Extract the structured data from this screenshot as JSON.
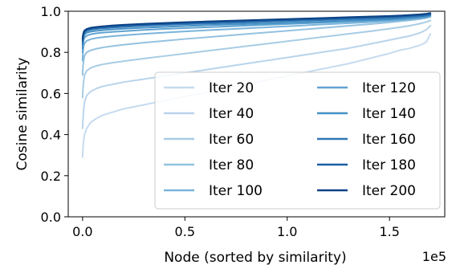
{
  "chart_data": {
    "type": "line",
    "title": "",
    "xlabel": "Node (sorted by similarity)",
    "ylabel": "Cosine similarity",
    "x_scale_label": "1e5",
    "xlim": [
      -0.07,
      1.77
    ],
    "ylim": [
      0.0,
      1.0
    ],
    "x_ticks": [
      0.0,
      0.5,
      1.0,
      1.5
    ],
    "x_tick_labels": [
      "0.0",
      "0.5",
      "1.0",
      "1.5"
    ],
    "y_ticks": [
      0.0,
      0.2,
      0.4,
      0.6,
      0.8,
      1.0
    ],
    "y_tick_labels": [
      "0.0",
      "0.2",
      "0.4",
      "0.6",
      "0.8",
      "1.0"
    ],
    "grid": false,
    "legend_position": "lower-right",
    "legend_columns": 2,
    "colormap": "Blues",
    "x": [
      0.0,
      0.002,
      0.005,
      0.01,
      0.02,
      0.04,
      0.07,
      0.1,
      0.15,
      0.2,
      0.3,
      0.4,
      0.5,
      0.6,
      0.7,
      0.8,
      0.9,
      1.0,
      1.1,
      1.2,
      1.3,
      1.4,
      1.5,
      1.55,
      1.6,
      1.65,
      1.68,
      1.7
    ],
    "series": [
      {
        "name": "Iter 20",
        "color": "#c6dbef",
        "values": [
          0.29,
          0.33,
          0.37,
          0.4,
          0.43,
          0.46,
          0.48,
          0.495,
          0.51,
          0.525,
          0.545,
          0.565,
          0.585,
          0.605,
          0.625,
          0.645,
          0.665,
          0.685,
          0.705,
          0.725,
          0.745,
          0.77,
          0.795,
          0.81,
          0.82,
          0.835,
          0.85,
          0.89
        ]
      },
      {
        "name": "Iter 40",
        "color": "#b9d4eb",
        "values": [
          0.43,
          0.47,
          0.52,
          0.56,
          0.59,
          0.61,
          0.625,
          0.635,
          0.645,
          0.655,
          0.67,
          0.685,
          0.7,
          0.715,
          0.73,
          0.745,
          0.76,
          0.775,
          0.79,
          0.805,
          0.82,
          0.84,
          0.86,
          0.87,
          0.88,
          0.895,
          0.91,
          0.93
        ]
      },
      {
        "name": "Iter 60",
        "color": "#a8cce4",
        "values": [
          0.58,
          0.62,
          0.66,
          0.69,
          0.71,
          0.725,
          0.735,
          0.742,
          0.75,
          0.757,
          0.77,
          0.782,
          0.794,
          0.806,
          0.818,
          0.83,
          0.842,
          0.854,
          0.866,
          0.878,
          0.89,
          0.902,
          0.915,
          0.922,
          0.93,
          0.94,
          0.948,
          0.955
        ]
      },
      {
        "name": "Iter 80",
        "color": "#94c2e0",
        "values": [
          0.69,
          0.73,
          0.76,
          0.785,
          0.8,
          0.81,
          0.818,
          0.824,
          0.831,
          0.837,
          0.847,
          0.856,
          0.865,
          0.873,
          0.881,
          0.889,
          0.897,
          0.905,
          0.913,
          0.921,
          0.929,
          0.937,
          0.946,
          0.951,
          0.956,
          0.962,
          0.967,
          0.972
        ]
      },
      {
        "name": "Iter 100",
        "color": "#7ab4db",
        "values": [
          0.76,
          0.8,
          0.83,
          0.845,
          0.856,
          0.864,
          0.87,
          0.874,
          0.879,
          0.883,
          0.89,
          0.896,
          0.902,
          0.907,
          0.912,
          0.917,
          0.922,
          0.927,
          0.932,
          0.937,
          0.942,
          0.947,
          0.953,
          0.956,
          0.96,
          0.965,
          0.969,
          0.975
        ]
      },
      {
        "name": "Iter 120",
        "color": "#5fa3d1",
        "values": [
          0.8,
          0.835,
          0.858,
          0.872,
          0.881,
          0.888,
          0.893,
          0.896,
          0.9,
          0.903,
          0.909,
          0.914,
          0.918,
          0.922,
          0.926,
          0.93,
          0.934,
          0.938,
          0.942,
          0.946,
          0.95,
          0.954,
          0.958,
          0.961,
          0.964,
          0.968,
          0.972,
          0.978
        ]
      },
      {
        "name": "Iter 140",
        "color": "#4691c6",
        "values": [
          0.82,
          0.855,
          0.875,
          0.887,
          0.895,
          0.901,
          0.905,
          0.908,
          0.912,
          0.915,
          0.92,
          0.924,
          0.928,
          0.932,
          0.935,
          0.938,
          0.941,
          0.944,
          0.947,
          0.95,
          0.953,
          0.957,
          0.961,
          0.964,
          0.967,
          0.971,
          0.975,
          0.98
        ]
      },
      {
        "name": "Iter 160",
        "color": "#3077b6",
        "values": [
          0.84,
          0.868,
          0.885,
          0.896,
          0.904,
          0.91,
          0.914,
          0.917,
          0.921,
          0.924,
          0.929,
          0.933,
          0.937,
          0.94,
          0.943,
          0.946,
          0.949,
          0.952,
          0.955,
          0.958,
          0.961,
          0.964,
          0.967,
          0.97,
          0.973,
          0.976,
          0.979,
          0.983
        ]
      },
      {
        "name": "Iter 180",
        "color": "#1c5fa3",
        "values": [
          0.855,
          0.878,
          0.893,
          0.903,
          0.91,
          0.916,
          0.92,
          0.923,
          0.927,
          0.93,
          0.935,
          0.939,
          0.943,
          0.946,
          0.949,
          0.952,
          0.955,
          0.958,
          0.961,
          0.964,
          0.967,
          0.97,
          0.973,
          0.975,
          0.978,
          0.981,
          0.984,
          0.987
        ]
      },
      {
        "name": "Iter 200",
        "color": "#0b4285",
        "values": [
          0.865,
          0.885,
          0.898,
          0.907,
          0.914,
          0.92,
          0.924,
          0.927,
          0.931,
          0.934,
          0.939,
          0.943,
          0.947,
          0.95,
          0.953,
          0.956,
          0.959,
          0.962,
          0.965,
          0.968,
          0.971,
          0.974,
          0.977,
          0.979,
          0.982,
          0.985,
          0.988,
          0.991
        ]
      }
    ]
  }
}
